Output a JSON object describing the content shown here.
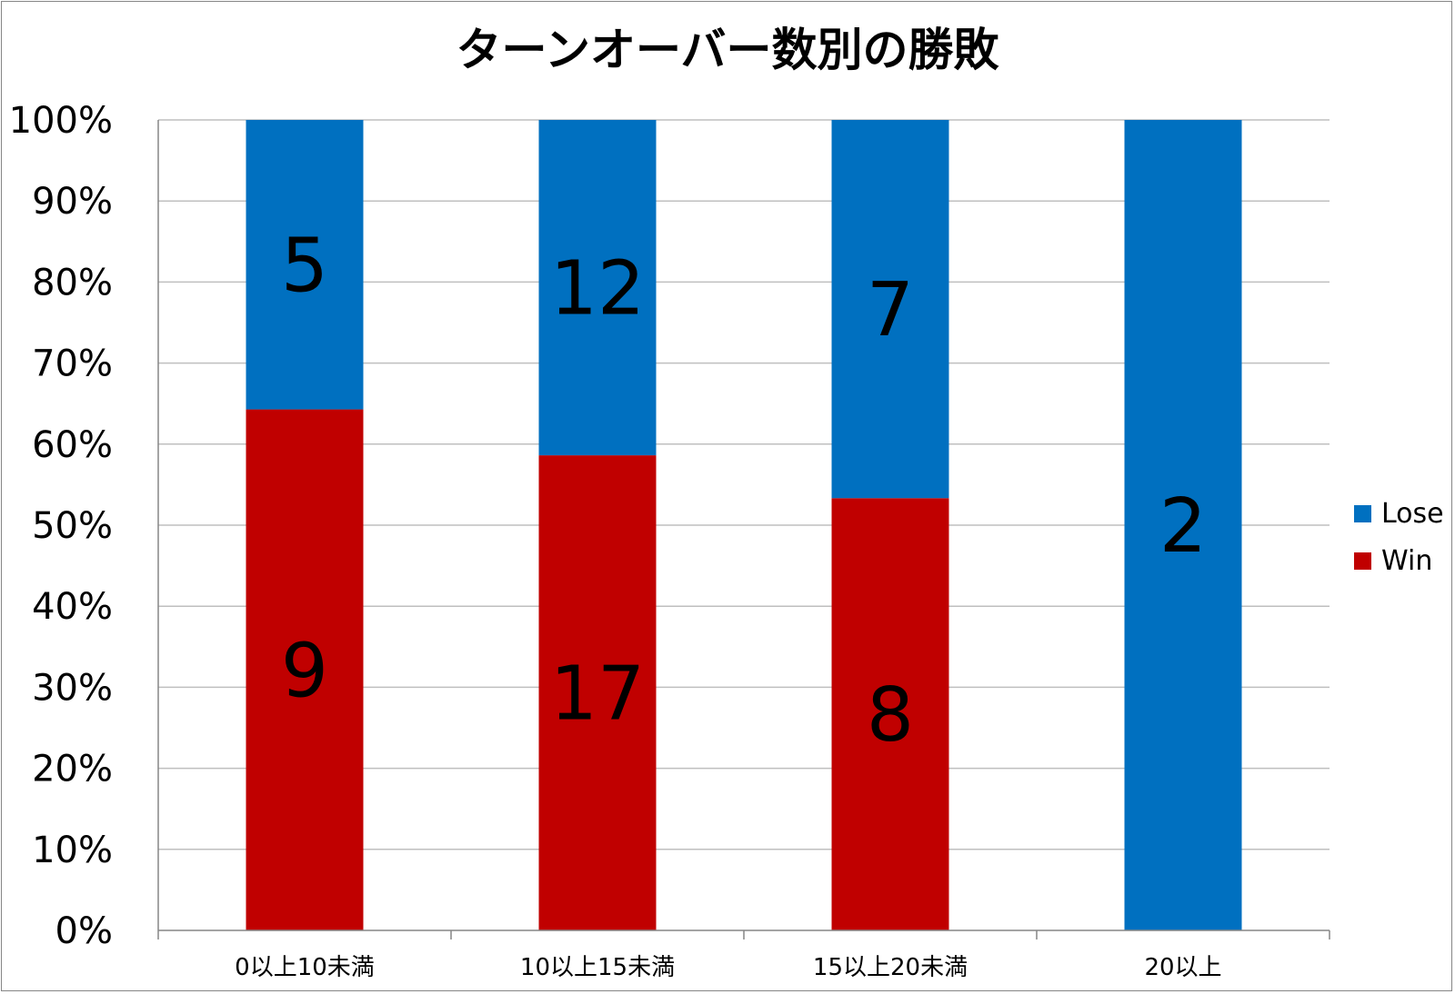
{
  "chart_data": {
    "type": "bar",
    "stacked": "percent",
    "title": "ターンオーバー数別の勝敗",
    "xlabel": "",
    "ylabel": "",
    "categories": [
      "0以上10未満",
      "10以上15未満",
      "15以上20未満",
      "20以上"
    ],
    "series": [
      {
        "name": "Win",
        "values": [
          9,
          17,
          8,
          0
        ],
        "color": "#C00000"
      },
      {
        "name": "Lose",
        "values": [
          5,
          12,
          7,
          2
        ],
        "color": "#0070C0"
      }
    ],
    "ylim": [
      0,
      100
    ],
    "y_ticks": [
      "0%",
      "10%",
      "20%",
      "30%",
      "40%",
      "50%",
      "60%",
      "70%",
      "80%",
      "90%",
      "100%"
    ],
    "legend": {
      "position": "right",
      "order": [
        "Lose",
        "Win"
      ]
    },
    "grid": true,
    "colors": {
      "grid": "#BFBFBF",
      "axis": "#868686",
      "frame": "#868686"
    }
  }
}
